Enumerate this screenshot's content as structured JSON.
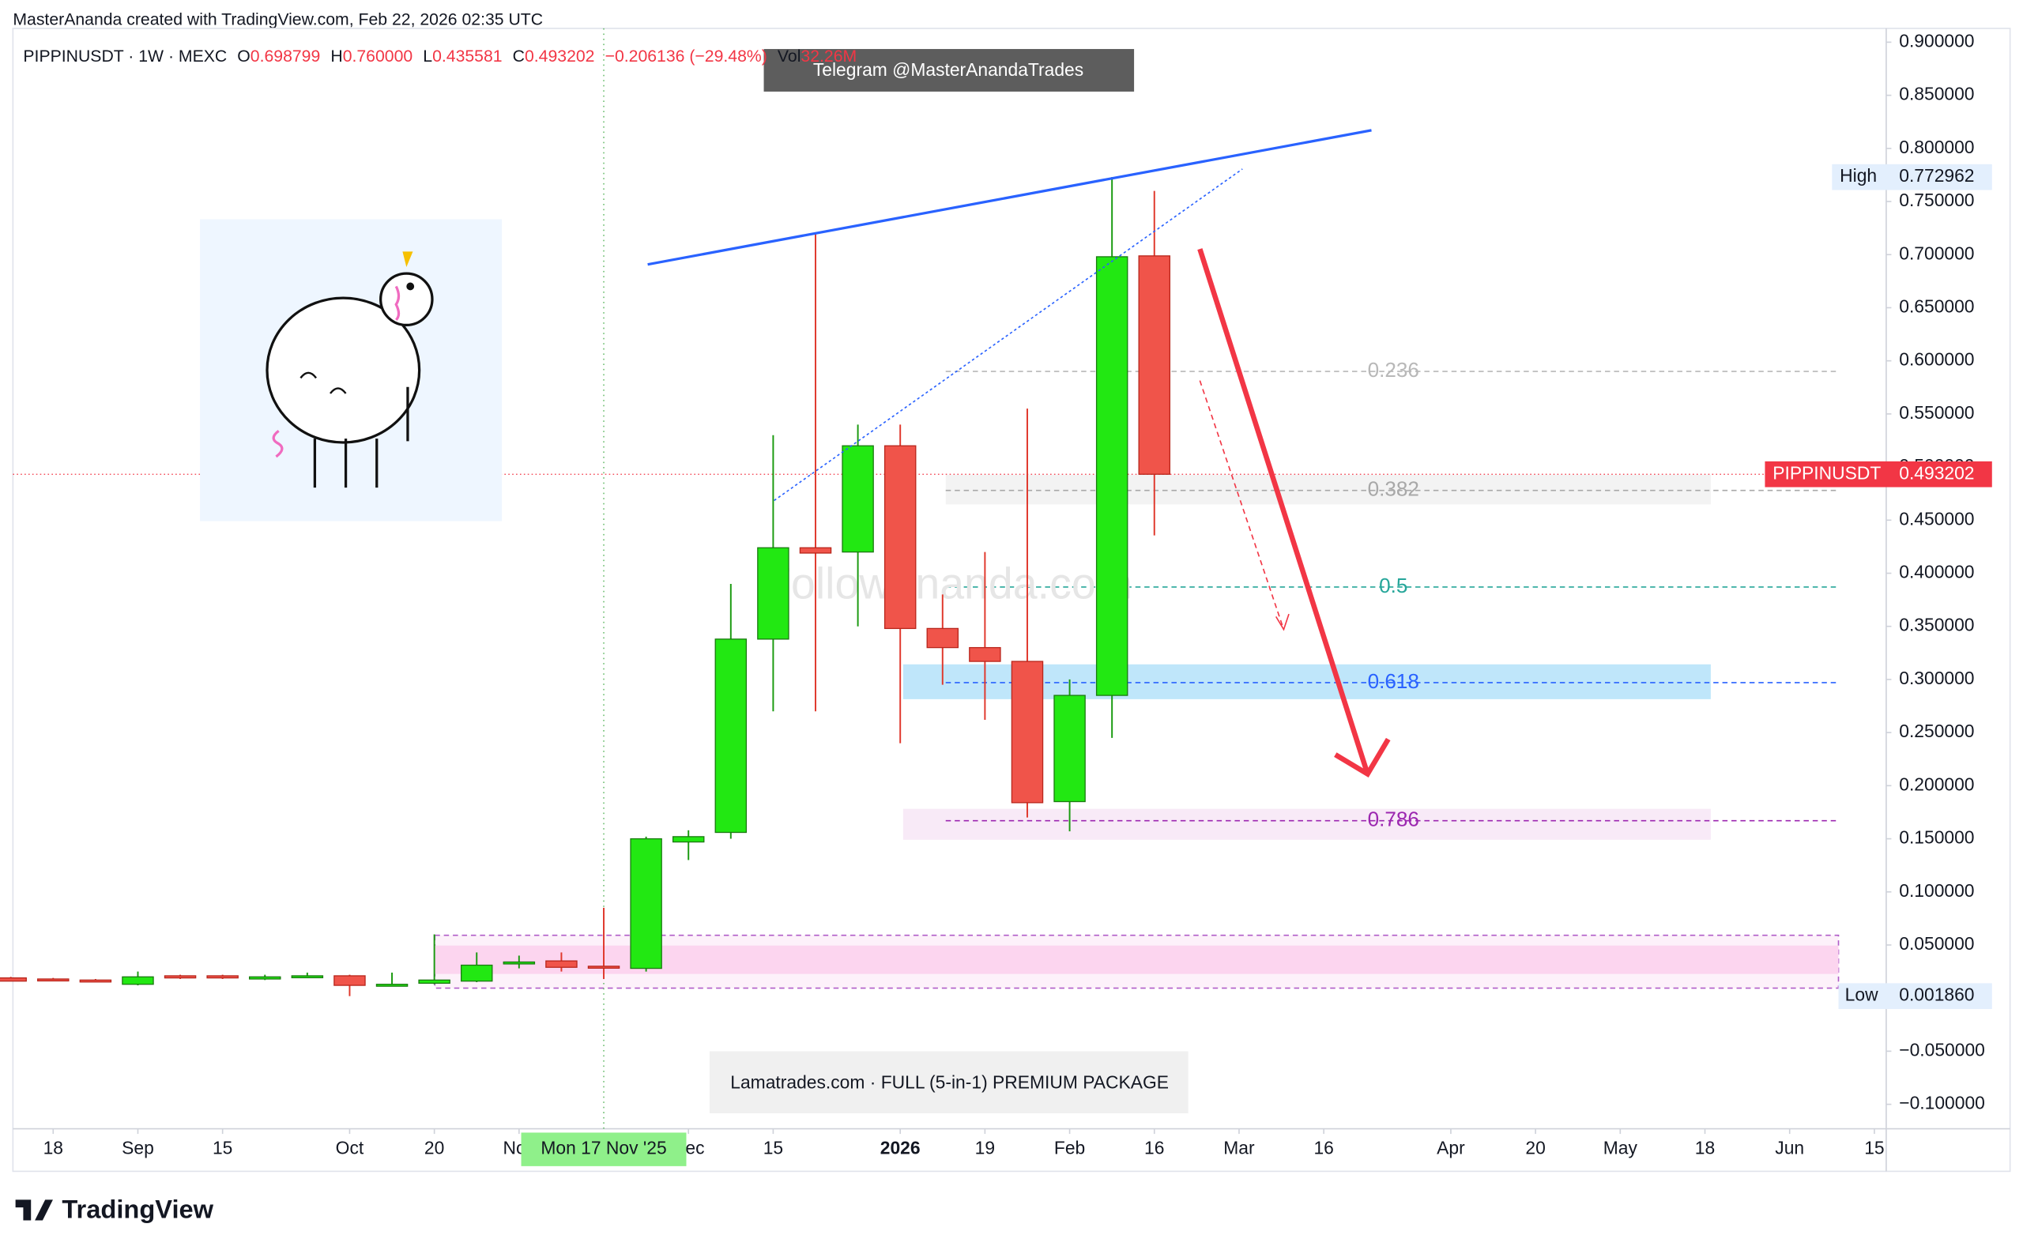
{
  "header": "MasterAnanda created with TradingView.com, Feb 22, 2026 02:35 UTC",
  "logo": "TradingView",
  "overlays": {
    "telegram": "Telegram @MasterAnandaTrades",
    "watermark": "Followananda.com",
    "banner": "Lamatrades.com · FULL (5-in-1) PREMIUM PACKAGE",
    "crosshair_date": "Mon 17 Nov '25"
  },
  "chart_data": {
    "type": "candlestick",
    "symbol_line": "PIPPINUSDT · 1W · MEXC",
    "ohlc_labels": [
      {
        "key": "O",
        "text": "0.698799"
      },
      {
        "key": "H",
        "text": "0.760000"
      },
      {
        "key": "L",
        "text": "0.435581"
      },
      {
        "key": "C",
        "text": "0.493202"
      }
    ],
    "change": "−0.206136 (−29.48%)",
    "volume": {
      "key": "Vol",
      "text": "32.26M"
    },
    "open": [
      0.019,
      0.018,
      0.017,
      0.013,
      0.021,
      0.021,
      0.018,
      0.02,
      0.021,
      0.012,
      0.014,
      0.016,
      0.033,
      0.035,
      0.03,
      0.028,
      0.147,
      0.156,
      0.338,
      0.424,
      0.42,
      0.52,
      0.348,
      0.33,
      0.317,
      0.185,
      0.285,
      0.698799
    ],
    "high": [
      0.02,
      0.019,
      0.018,
      0.025,
      0.022,
      0.022,
      0.022,
      0.024,
      0.022,
      0.024,
      0.06,
      0.043,
      0.04,
      0.043,
      0.085,
      0.152,
      0.158,
      0.39,
      0.53,
      0.72,
      0.54,
      0.54,
      0.38,
      0.42,
      0.555,
      0.3,
      0.772962,
      0.76
    ],
    "low": [
      0.016,
      0.016,
      0.016,
      0.012,
      0.018,
      0.018,
      0.017,
      0.019,
      0.00186,
      0.011,
      0.013,
      0.015,
      0.028,
      0.025,
      0.018,
      0.025,
      0.13,
      0.15,
      0.27,
      0.27,
      0.35,
      0.24,
      0.295,
      0.262,
      0.17,
      0.157,
      0.245,
      0.435581
    ],
    "close": [
      0.016,
      0.017,
      0.016,
      0.02,
      0.019,
      0.019,
      0.02,
      0.021,
      0.012,
      0.013,
      0.017,
      0.031,
      0.034,
      0.029,
      0.029,
      0.15,
      0.152,
      0.338,
      0.424,
      0.419,
      0.52,
      0.348,
      0.33,
      0.317,
      0.184,
      0.285,
      0.698,
      0.493202
    ],
    "up_color": "#22e812",
    "down_color": "#f0544a",
    "xlim": [
      0.05,
      44.28
    ],
    "ylim": [
      -0.123,
      0.913
    ],
    "yticks": [
      {
        "value": 0.9,
        "label": "0.900000"
      },
      {
        "value": 0.85,
        "label": "0.850000"
      },
      {
        "value": 0.8,
        "label": "0.800000"
      },
      {
        "value": 0.75,
        "label": "0.750000"
      },
      {
        "value": 0.7,
        "label": "0.700000"
      },
      {
        "value": 0.65,
        "label": "0.650000"
      },
      {
        "value": 0.6,
        "label": "0.600000"
      },
      {
        "value": 0.55,
        "label": "0.550000"
      },
      {
        "value": 0.5,
        "label": "0.500000"
      },
      {
        "value": 0.45,
        "label": "0.450000"
      },
      {
        "value": 0.4,
        "label": "0.400000"
      },
      {
        "value": 0.35,
        "label": "0.350000"
      },
      {
        "value": 0.3,
        "label": "0.300000"
      },
      {
        "value": 0.25,
        "label": "0.250000"
      },
      {
        "value": 0.2,
        "label": "0.200000"
      },
      {
        "value": 0.15,
        "label": "0.150000"
      },
      {
        "value": 0.1,
        "label": "0.100000"
      },
      {
        "value": 0.05,
        "label": "0.050000"
      },
      {
        "value": 0,
        "label": "0.000000"
      },
      {
        "value": -0.05,
        "label": "−0.050000"
      },
      {
        "value": -0.1,
        "label": "−0.100000"
      }
    ],
    "xticks": [
      {
        "value": 1,
        "label": "18"
      },
      {
        "value": 3,
        "label": "Sep"
      },
      {
        "value": 5,
        "label": "15"
      },
      {
        "value": 8,
        "label": "Oct"
      },
      {
        "value": 10,
        "label": "20"
      },
      {
        "value": 12,
        "label": "Nov"
      },
      {
        "value": 16,
        "label": "Dec"
      },
      {
        "value": 18,
        "label": "15"
      },
      {
        "value": 21,
        "label": "2026"
      },
      {
        "value": 23,
        "label": "19"
      },
      {
        "value": 25,
        "label": "Feb"
      },
      {
        "value": 27,
        "label": "16"
      },
      {
        "value": 29,
        "label": "Mar"
      },
      {
        "value": 31,
        "label": "16"
      },
      {
        "value": 34,
        "label": "Apr"
      },
      {
        "value": 36,
        "label": "20"
      },
      {
        "value": 38,
        "label": "May"
      },
      {
        "value": 40,
        "label": "18"
      },
      {
        "value": 42,
        "label": "Jun"
      },
      {
        "value": 44,
        "label": "15"
      }
    ],
    "crosshair_x": 14,
    "fib_levels": [
      {
        "label": "0.236",
        "value": 0.59,
        "color": "#b8b8b8"
      },
      {
        "label": "0.382",
        "value": 0.478,
        "color": "#a8a8a8"
      },
      {
        "label": "0.5",
        "value": 0.387,
        "color": "#26a69a"
      },
      {
        "label": "0.618",
        "value": 0.297,
        "color": "#2962ff"
      },
      {
        "label": "0.786",
        "value": 0.167,
        "color": "#9c27b0"
      }
    ],
    "price_label": {
      "name": "PIPPINUSDT",
      "value": 0.493202
    },
    "high_label": {
      "name": "High",
      "value": 0.772962
    },
    "low_label": {
      "name": "Low",
      "value": {
        "value": 0.00186,
        "label": "0.001860"
      }
    }
  }
}
